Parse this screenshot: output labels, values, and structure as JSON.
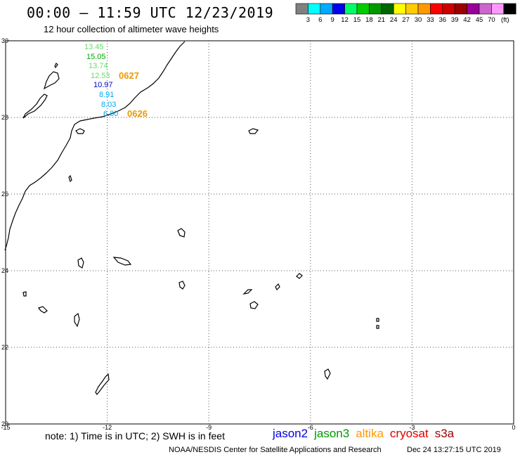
{
  "header": {
    "title": "00:00 – 11:59 UTC 12/23/2019",
    "subtitle": "12 hour collection of altimeter wave heights"
  },
  "legend": {
    "unit": "(ft)",
    "bins": [
      {
        "label": "",
        "color": "#808080"
      },
      {
        "label": "3",
        "color": "#00ffff"
      },
      {
        "label": "6",
        "color": "#00aaff"
      },
      {
        "label": "9",
        "color": "#0000ee"
      },
      {
        "label": "12",
        "color": "#00ff66"
      },
      {
        "label": "15",
        "color": "#00cc00"
      },
      {
        "label": "18",
        "color": "#009900"
      },
      {
        "label": "21",
        "color": "#006600"
      },
      {
        "label": "24",
        "color": "#ffff00"
      },
      {
        "label": "27",
        "color": "#ffcc00"
      },
      {
        "label": "30",
        "color": "#ff9900"
      },
      {
        "label": "33",
        "color": "#ff0000"
      },
      {
        "label": "36",
        "color": "#cc0000"
      },
      {
        "label": "39",
        "color": "#990000"
      },
      {
        "label": "42",
        "color": "#990099"
      },
      {
        "label": "45",
        "color": "#cc66cc"
      },
      {
        "label": "70",
        "color": "#ff99ff"
      },
      {
        "label": "",
        "color": "#000000"
      }
    ]
  },
  "map": {
    "lon_range": [
      -15,
      0
    ],
    "lat_range": [
      20,
      30
    ],
    "lon_ticks": [
      {
        "value": -15,
        "label": "-15"
      },
      {
        "value": -12,
        "label": "-12"
      },
      {
        "value": -9,
        "label": "-9"
      },
      {
        "value": -6,
        "label": "-6"
      },
      {
        "value": -3,
        "label": "-3"
      },
      {
        "value": 0,
        "label": "0"
      }
    ],
    "lat_ticks": [
      {
        "value": 30,
        "label": "30"
      },
      {
        "value": 28,
        "label": "28"
      },
      {
        "value": 26,
        "label": "26"
      },
      {
        "value": 24,
        "label": "24"
      },
      {
        "value": 22,
        "label": "22"
      },
      {
        "value": 20,
        "label": "20"
      }
    ],
    "grid": true
  },
  "chart_data": {
    "type": "scatter",
    "x_axis": "longitude",
    "y_axis": "latitude",
    "xlim": [
      -15,
      0
    ],
    "ylim": [
      20,
      30
    ],
    "grid": true,
    "swh_labels": [
      {
        "value": "13.45",
        "color": "#66dd66"
      },
      {
        "value": "15.05",
        "color": "#00aa00"
      },
      {
        "value": "13.74",
        "color": "#66dd66"
      },
      {
        "value": "12.53",
        "color": "#66dd66"
      },
      {
        "value": "10.97",
        "color": "#0000cc"
      },
      {
        "value": "8.91",
        "color": "#00aaee"
      },
      {
        "value": "8.03",
        "color": "#00aaee"
      },
      {
        "value": "6.80",
        "color": "#00aaee"
      }
    ],
    "pass_times": [
      {
        "label": "0627",
        "color": "#ee9900"
      },
      {
        "label": "0626",
        "color": "#ee9900"
      }
    ]
  },
  "note": "note: 1) Time is in UTC; 2) SWH is in feet",
  "satellites": [
    {
      "name": "jason2",
      "color": "#0000dd"
    },
    {
      "name": "jason3",
      "color": "#009900"
    },
    {
      "name": "altika",
      "color": "#ff9900"
    },
    {
      "name": "cryosat",
      "color": "#dd0000"
    },
    {
      "name": "s3a",
      "color": "#990000"
    }
  ],
  "footer": {
    "credit": "NOAA/NESDIS Center for Satellite Applications and Research",
    "timestamp": "Dec 24 13:27:15 UTC 2019"
  }
}
